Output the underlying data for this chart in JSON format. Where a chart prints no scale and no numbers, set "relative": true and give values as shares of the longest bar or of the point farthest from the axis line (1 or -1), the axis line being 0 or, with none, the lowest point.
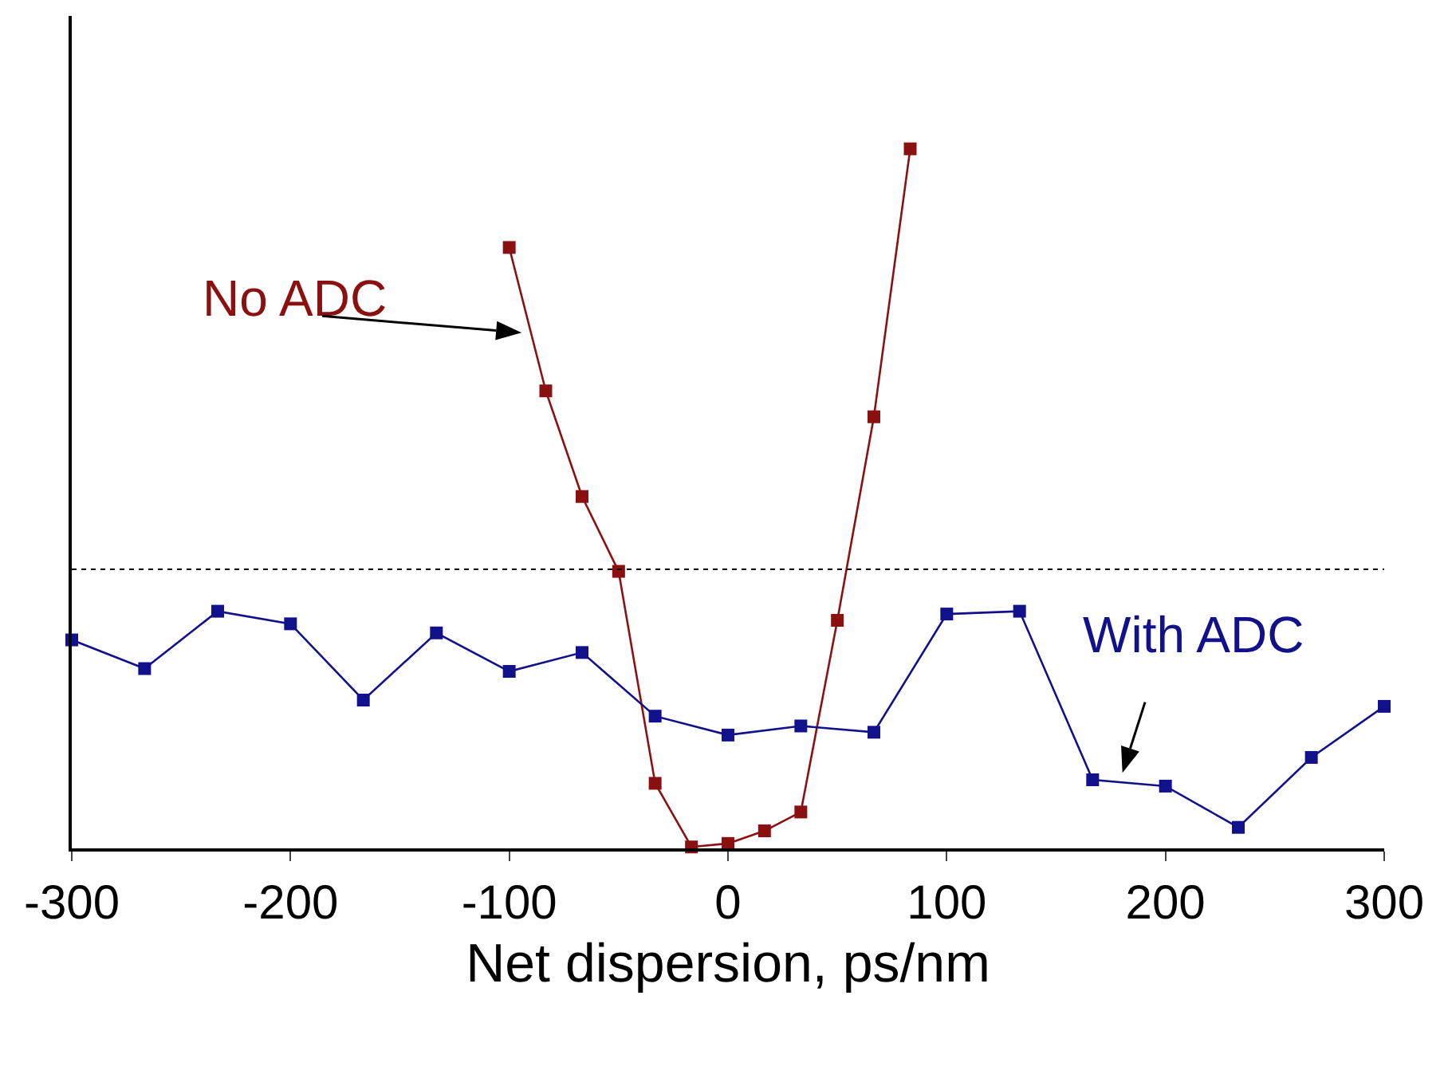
{
  "chart_data": {
    "type": "line",
    "xlabel": "Net dispersion, ps/nm",
    "relative": true,
    "marker": "square",
    "line_style": "solid",
    "grid": false,
    "xlim": [
      -300,
      300
    ],
    "xticks": [
      -300,
      -200,
      -100,
      0,
      100,
      200,
      300
    ],
    "series": [
      {
        "color": "#8b1111",
        "x": [
          -100,
          -83.3,
          -66.7,
          -50,
          -33.3,
          -16.7,
          0,
          16.7,
          33.3,
          50,
          66.7,
          83.3
        ],
        "values": [
          0.859,
          0.654,
          0.503,
          0.396,
          0.093,
          0.002,
          0.007,
          0.025,
          0.052,
          0.326,
          0.617,
          1.0
        ]
      },
      {
        "color": "#11118b",
        "x": [
          -300,
          -266.7,
          -233.3,
          -200,
          -166.7,
          -133.3,
          -100,
          -66.7,
          -33.3,
          0,
          33.3,
          66.7,
          100,
          133.3,
          166.7,
          200,
          233.3,
          266.7,
          300
        ],
        "values": [
          0.298,
          0.257,
          0.339,
          0.321,
          0.212,
          0.308,
          0.253,
          0.28,
          0.189,
          0.162,
          0.175,
          0.166,
          0.335,
          0.339,
          0.098,
          0.089,
          0.03,
          0.13,
          0.203
        ]
      }
    ],
    "ref_lines": [
      {
        "axis": "y",
        "value": 0.399,
        "color": "#000000",
        "line_style": "dotted"
      }
    ],
    "annotations": [
      {
        "text": "No ADC",
        "x": -90,
        "y": 0.736
      },
      {
        "text": "With ADC",
        "x": 179,
        "y": 0.095
      }
    ]
  }
}
